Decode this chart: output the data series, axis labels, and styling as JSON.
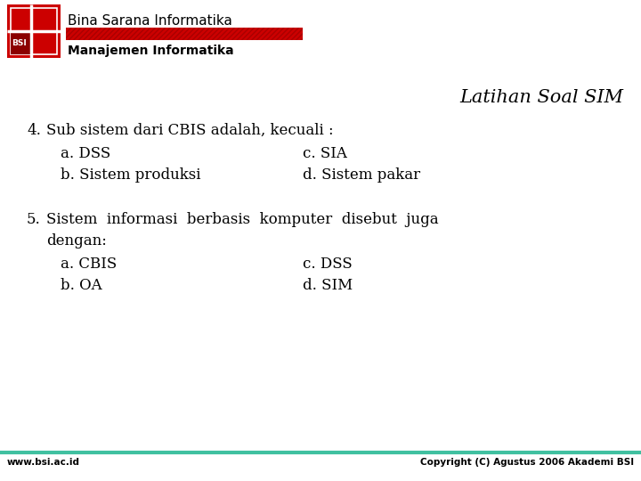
{
  "bg_color": "#ffffff",
  "header_org": "Bina Sarana Informatika",
  "header_dept": "Manajemen Informatika",
  "title": "Latihan Soal SIM",
  "q4_main": "4.  Sub sistem dari CBIS adalah, kecuali :",
  "q4_a": "a. DSS",
  "q4_c": "c. SIA",
  "q4_b": "b. Sistem produksi",
  "q4_d": "d. Sistem pakar",
  "q5_main": "5.  Sistem  informasi  berbasis  komputer  disebut  juga",
  "q5_cont": "dengan:",
  "q5_a": "a. CBIS",
  "q5_c": "c. DSS",
  "q5_b": "b. OA",
  "q5_d": "d. SIM",
  "footer_left": "www.bsi.ac.id",
  "footer_right": "Copyright (C) Agustus 2006 Akademi BSI",
  "text_color": "#000000",
  "title_color": "#000000",
  "footer_color": "#000000",
  "header_line_color": "#cc0000",
  "footer_line_color": "#40c0a0",
  "logo_color": "#cc0000",
  "logo_inner_color": "#8b0000",
  "header_org_fontsize": 11,
  "header_dept_fontsize": 10,
  "title_fontsize": 15,
  "body_fontsize": 12,
  "footer_fontsize": 7.5
}
